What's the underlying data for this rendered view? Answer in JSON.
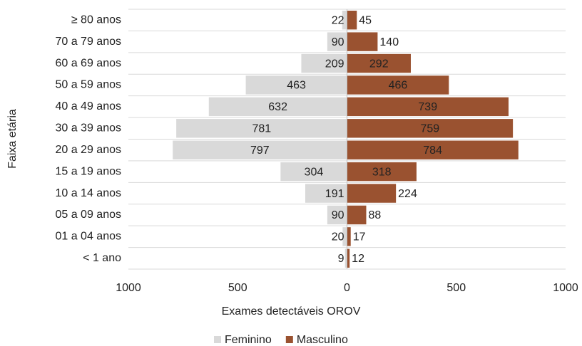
{
  "chart_data": {
    "type": "pyramid",
    "categories": [
      "≥ 80 anos",
      "70 a 79 anos",
      "60 a 69 anos",
      "50 a 59 anos",
      "40 a 49 anos",
      "30 a 39 anos",
      "20 a 29 anos",
      "15 a 19 anos",
      "10 a 14 anos",
      "05 a 09 anos",
      "01 a 04 anos",
      "< 1 ano"
    ],
    "series": [
      {
        "name": "Feminino",
        "color": "#d9d9d9",
        "side": "left",
        "values": [
          22,
          90,
          209,
          463,
          632,
          781,
          797,
          304,
          191,
          90,
          20,
          9
        ]
      },
      {
        "name": "Masculino",
        "color": "#9a5230",
        "side": "right",
        "values": [
          45,
          140,
          292,
          466,
          739,
          759,
          784,
          318,
          224,
          88,
          17,
          12
        ]
      }
    ],
    "xlabel": "Exames detectáveis OROV",
    "ylabel": "Faixa etária",
    "xlim": [
      -1000,
      1000
    ],
    "xticks": [
      {
        "value": -1000,
        "label": "1000"
      },
      {
        "value": -500,
        "label": "500"
      },
      0,
      500,
      1000
    ],
    "grid": true,
    "legend": "bottom"
  }
}
